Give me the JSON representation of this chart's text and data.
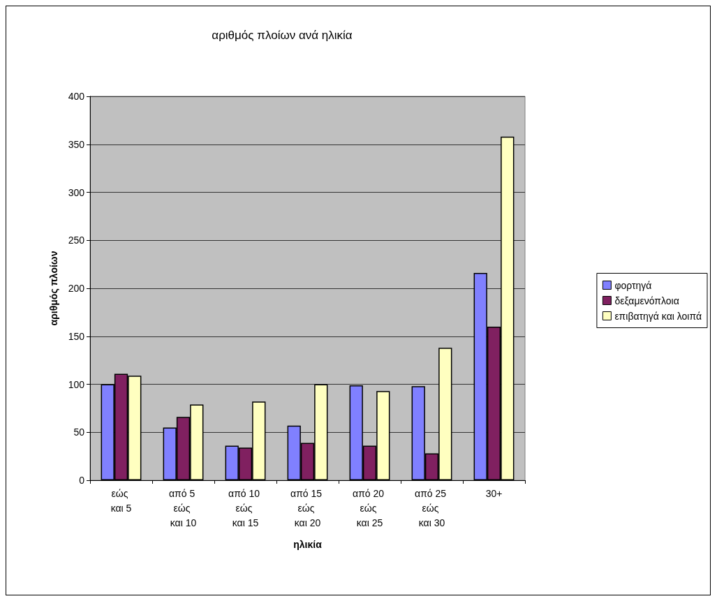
{
  "chart_data": {
    "type": "bar",
    "title": "αριθμός πλοίων ανά ηλικία",
    "xlabel": "ηλικία",
    "ylabel": "αριθμός πλοίων",
    "categories": [
      "εώς και 5",
      "από 5 εώς και 10",
      "από 10 εώς και 15",
      "από 15 εώς και 20",
      "από 20 εώς και 25",
      "από 25 εώς και 30",
      "30+"
    ],
    "series": [
      {
        "name": "φορτηγά",
        "color": "#8080ff",
        "values": [
          100,
          55,
          36,
          57,
          99,
          98,
          216
        ]
      },
      {
        "name": "δεξαμενόπλοια",
        "color": "#802060",
        "values": [
          111,
          66,
          34,
          39,
          36,
          28,
          160
        ]
      },
      {
        "name": "επιβατηγά και λοιπά",
        "color": "#ffffc0",
        "values": [
          109,
          79,
          82,
          100,
          93,
          138,
          358
        ]
      }
    ],
    "ylim": [
      0,
      400
    ],
    "yticks": [
      0,
      50,
      100,
      150,
      200,
      250,
      300,
      350,
      400
    ],
    "grid": "y",
    "legend": "right"
  }
}
